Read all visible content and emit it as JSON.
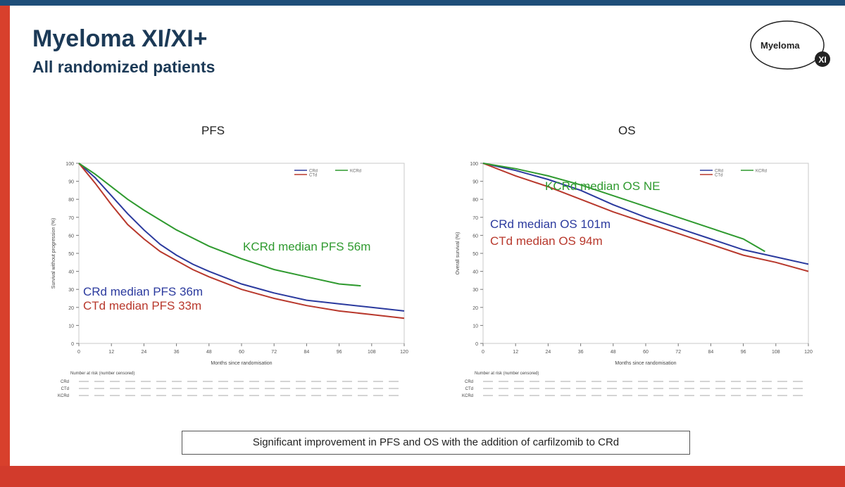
{
  "slide": {
    "title": "Myeloma XI/XI+",
    "subtitle": "All randomized patients",
    "logo_text": "Myeloma",
    "logo_badge": "XI",
    "footer": "Significant improvement in PFS and OS with the addition of carfilzomib to CRd"
  },
  "colors": {
    "CRd": "#2b3a9e",
    "CTd": "#b8382c",
    "KCRd": "#2f9a2f",
    "header_bar": "#1f4e79",
    "title": "#1c3a57"
  },
  "chart_data": [
    {
      "type": "line",
      "panel_title": "PFS",
      "xlabel": "Months since randomisation",
      "ylabel": "Survival without progression (%)",
      "xlim": [
        0,
        120
      ],
      "ylim": [
        0,
        100
      ],
      "x_ticks": [
        0,
        12,
        24,
        36,
        48,
        60,
        72,
        84,
        96,
        108,
        120
      ],
      "y_ticks": [
        0,
        10,
        20,
        30,
        40,
        50,
        60,
        70,
        80,
        90,
        100
      ],
      "legend": [
        "CRd",
        "CTd",
        "KCRd"
      ],
      "series": [
        {
          "name": "CRd",
          "color": "#2b3a9e",
          "x": [
            0,
            6,
            12,
            18,
            24,
            30,
            36,
            42,
            48,
            60,
            72,
            84,
            96,
            108,
            120
          ],
          "y": [
            100,
            92,
            82,
            72,
            63,
            55,
            49,
            44,
            40,
            33,
            28,
            24,
            22,
            20,
            18
          ]
        },
        {
          "name": "CTd",
          "color": "#b8382c",
          "x": [
            0,
            6,
            12,
            18,
            24,
            30,
            36,
            42,
            48,
            60,
            72,
            84,
            96,
            108,
            120
          ],
          "y": [
            100,
            89,
            77,
            66,
            58,
            51,
            46,
            41,
            37,
            30,
            25,
            21,
            18,
            16,
            14
          ]
        },
        {
          "name": "KCRd",
          "color": "#2f9a2f",
          "x": [
            0,
            6,
            12,
            18,
            24,
            36,
            48,
            60,
            72,
            84,
            96,
            104
          ],
          "y": [
            100,
            94,
            87,
            80,
            74,
            63,
            54,
            47,
            41,
            37,
            33,
            32
          ]
        }
      ],
      "annotations": [
        {
          "text": "KCRd median PFS 56m",
          "color": "#2f9a2f"
        },
        {
          "text": "CRd median PFS 36m",
          "color": "#2b3a9e"
        },
        {
          "text": "CTd median PFS 33m",
          "color": "#b8382c"
        }
      ],
      "risk_table_label": "Number at risk (number censored)",
      "risk_rows": [
        "CRd",
        "CTd",
        "KCRd"
      ]
    },
    {
      "type": "line",
      "panel_title": "OS",
      "xlabel": "Months since randomisation",
      "ylabel": "Overall survival (%)",
      "xlim": [
        0,
        120
      ],
      "ylim": [
        0,
        100
      ],
      "x_ticks": [
        0,
        12,
        24,
        36,
        48,
        60,
        72,
        84,
        96,
        108,
        120
      ],
      "y_ticks": [
        0,
        10,
        20,
        30,
        40,
        50,
        60,
        70,
        80,
        90,
        100
      ],
      "legend": [
        "CRd",
        "CTd",
        "KCRd"
      ],
      "series": [
        {
          "name": "CRd",
          "color": "#2b3a9e",
          "x": [
            0,
            12,
            24,
            36,
            48,
            60,
            72,
            84,
            96,
            108,
            120
          ],
          "y": [
            100,
            96,
            91,
            85,
            77,
            70,
            64,
            58,
            52,
            48,
            44
          ]
        },
        {
          "name": "CTd",
          "color": "#b8382c",
          "x": [
            0,
            12,
            24,
            36,
            48,
            60,
            72,
            84,
            96,
            108,
            120
          ],
          "y": [
            100,
            93,
            87,
            80,
            73,
            67,
            61,
            55,
            49,
            45,
            40
          ]
        },
        {
          "name": "KCRd",
          "color": "#2f9a2f",
          "x": [
            0,
            12,
            24,
            36,
            48,
            60,
            72,
            84,
            96,
            104
          ],
          "y": [
            100,
            97,
            93,
            88,
            82,
            76,
            70,
            64,
            58,
            51
          ]
        }
      ],
      "annotations": [
        {
          "text": "KCRd median OS NE",
          "color": "#2f9a2f"
        },
        {
          "text": "CRd median OS 101m",
          "color": "#2b3a9e"
        },
        {
          "text": "CTd median OS 94m",
          "color": "#b8382c"
        }
      ],
      "risk_table_label": "Number at risk (number censored)",
      "risk_rows": [
        "CRd",
        "CTd",
        "KCRd"
      ]
    }
  ]
}
